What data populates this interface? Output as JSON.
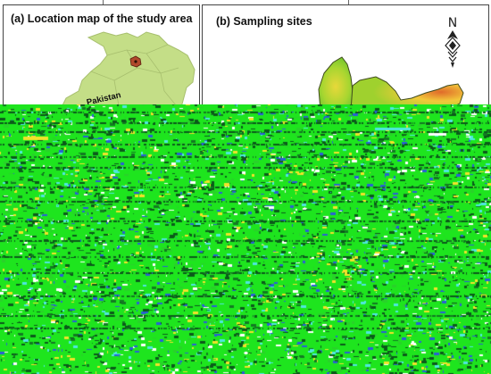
{
  "panels": {
    "a": {
      "title": "(a) Location map of the study area",
      "country_label": "Pakistan"
    },
    "b": {
      "title": "(b) Sampling sites",
      "north_label": "N"
    }
  },
  "colors": {
    "country_fill": "#c4de87",
    "country_stroke": "#a7bf6e",
    "study_area": "#b14a2c",
    "site_fill": "#9fd12e",
    "site_stroke": "#3f4a1e",
    "noise_green": "#1ee51e",
    "noise_dark": "#0b5a1a",
    "noise_yellow": "#f2e22a",
    "noise_cyan": "#4ee7e0",
    "noise_blue": "#2a5fd6"
  },
  "icons": [
    "north-arrow-icon",
    "study-area-marker-icon"
  ]
}
